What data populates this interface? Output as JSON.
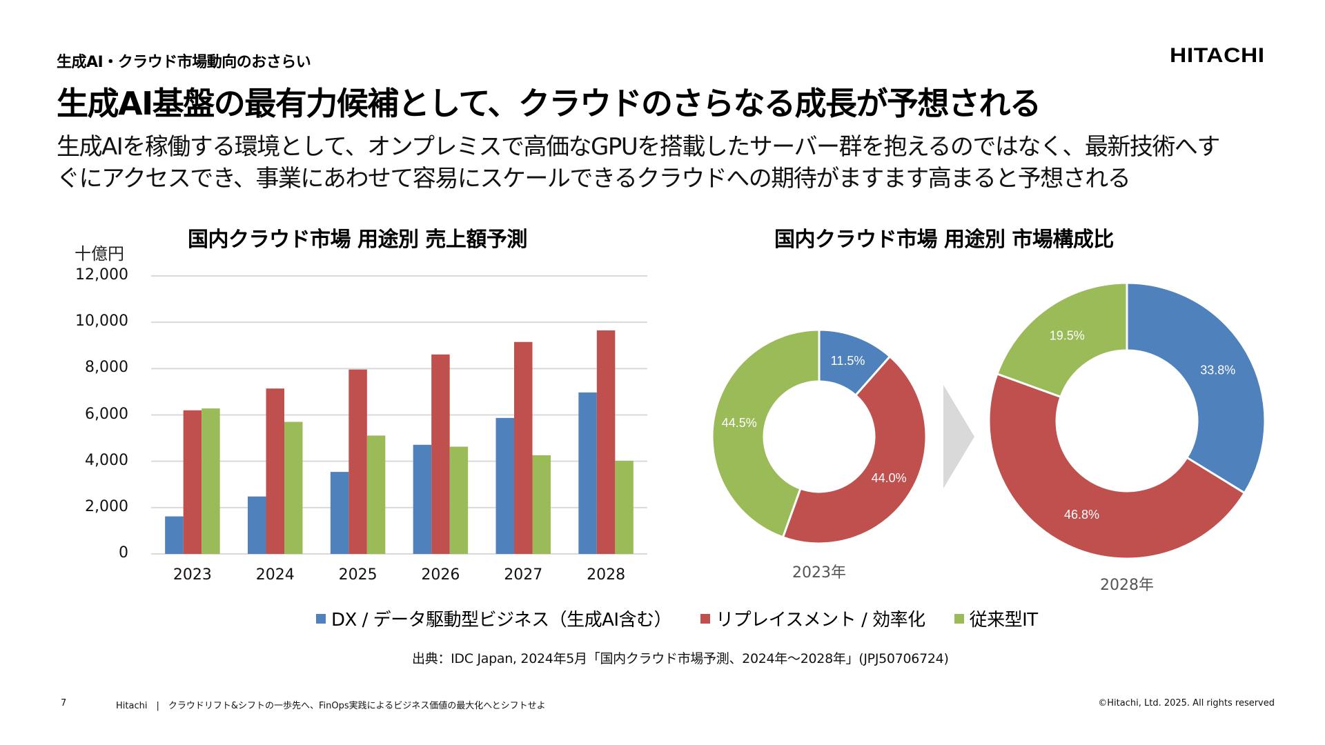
{
  "header": {
    "section_label": "生成AI・クラウド市場動向のおさらい",
    "logo_text": "HITACHI",
    "title": "生成AI基盤の最有力候補として、クラウドのさらなる成長が予想される",
    "lead_lines": [
      "生成AIを稼働する環境として、オンプレミスで高価なGPUを搭載したサーバー群を抱えるのではなく、最新技術へす",
      "ぐにアクセスでき、事業にあわせて容易にスケールできるクラウドへの期待がますます高まると予想される"
    ]
  },
  "legend": {
    "items": [
      {
        "label": "DX / データ駆動型ビジネス（生成AI含む）",
        "color": "#4F81BD"
      },
      {
        "label": "リプレイスメント / 効率化",
        "color": "#C0504D"
      },
      {
        "label": "従来型IT",
        "color": "#9BBB59"
      }
    ]
  },
  "source": "出典：IDC Japan, 2024年5月「国内クラウド市場予測、2024年～2028年」(JPJ50706724)",
  "footer": {
    "page_number": "7",
    "company_line": "Hitachi　|　クラウドリフト&シフトの一歩先へ、FinOps実践によるビジネス価値の最大化へとシフトせよ",
    "copyright": "©Hitachi, Ltd. 2025. All rights reserved"
  },
  "chart_data": [
    {
      "type": "bar",
      "title": "国内クラウド市場 用途別 売上額予測",
      "ylabel": "十億円",
      "xlabel": "",
      "categories": [
        "2023",
        "2024",
        "2025",
        "2026",
        "2027",
        "2028"
      ],
      "ylim": [
        0,
        12000
      ],
      "yticks": [
        0,
        2000,
        4000,
        6000,
        8000,
        10000,
        12000
      ],
      "ytick_labels": [
        "0",
        "2,000",
        "4,000",
        "6,000",
        "8,000",
        "10,000",
        "12,000"
      ],
      "grid": true,
      "series": [
        {
          "name": "DX / データ駆動型ビジネス（生成AI含む）",
          "color": "#4F81BD",
          "values": [
            1620,
            2480,
            3540,
            4710,
            5870,
            6970
          ]
        },
        {
          "name": "リプレイスメント / 効率化",
          "color": "#C0504D",
          "values": [
            6200,
            7140,
            7960,
            8610,
            9150,
            9650
          ]
        },
        {
          "name": "従来型IT",
          "color": "#9BBB59",
          "values": [
            6280,
            5700,
            5110,
            4630,
            4260,
            4020
          ]
        }
      ],
      "legend_position": "bottom"
    },
    {
      "type": "pie",
      "variant": "donut",
      "title": "国内クラウド市場 用途別 市場構成比",
      "charts": [
        {
          "label": "2023年",
          "slices": [
            {
              "name": "DX / データ駆動型ビジネス（生成AI含む）",
              "value": 11.5,
              "label": "11.5%",
              "color": "#4F81BD"
            },
            {
              "name": "リプレイスメント / 効率化",
              "value": 44.0,
              "label": "44.0%",
              "color": "#C0504D"
            },
            {
              "name": "従来型IT",
              "value": 44.5,
              "label": "44.5%",
              "color": "#9BBB59"
            }
          ]
        },
        {
          "label": "2028年",
          "slices": [
            {
              "name": "DX / データ駆動型ビジネス（生成AI含む）",
              "value": 33.8,
              "label": "33.8%",
              "color": "#4F81BD"
            },
            {
              "name": "リプレイスメント / 効率化",
              "value": 46.8,
              "label": "46.8%",
              "color": "#C0504D"
            },
            {
              "name": "従来型IT",
              "value": 19.5,
              "label": "19.5%",
              "color": "#9BBB59"
            }
          ]
        }
      ],
      "arrow": "right"
    }
  ]
}
